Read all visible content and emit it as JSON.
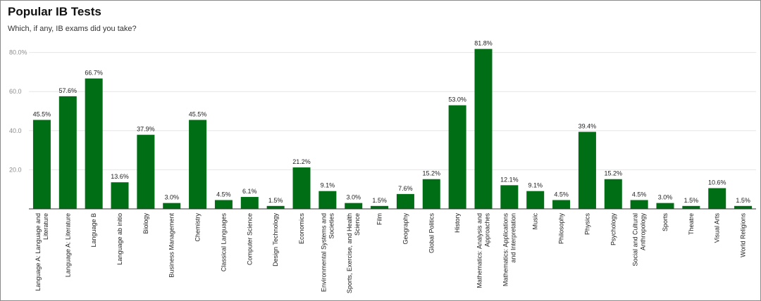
{
  "chart_data": {
    "type": "bar",
    "title": "Popular IB Tests",
    "subtitle": "Which, if any, IB exams did you take?",
    "y_ticks": [
      "80.0%",
      "60.0",
      "40.0",
      "20.0"
    ],
    "y_tick_values": [
      80,
      60,
      40,
      20
    ],
    "ylim": [
      0,
      80
    ],
    "grid": true,
    "categories": [
      [
        "Language A: Language and",
        "Literature"
      ],
      [
        "Language A: Literature"
      ],
      [
        "Language B"
      ],
      [
        "Language ab initio"
      ],
      [
        "Biology"
      ],
      [
        "Business Management"
      ],
      [
        "Chemistry"
      ],
      [
        "Classical Languages"
      ],
      [
        "Computer Science"
      ],
      [
        "Design Technology"
      ],
      [
        "Economics"
      ],
      [
        "Environmental Systems and",
        "Societies"
      ],
      [
        "Sports, Exercise, and Health",
        "Science"
      ],
      [
        "Film"
      ],
      [
        "Geography"
      ],
      [
        "Global Politics"
      ],
      [
        "History"
      ],
      [
        "Mathematics: Analysis and",
        "Approaches"
      ],
      [
        "Mathematics: Applications",
        "and Interpretation"
      ],
      [
        "Music"
      ],
      [
        "Philosophy"
      ],
      [
        "Physics"
      ],
      [
        "Psychology"
      ],
      [
        "Social and Cultural",
        "Anthropology"
      ],
      [
        "Sports"
      ],
      [
        "Theatre"
      ],
      [
        "Visual Arts"
      ],
      [
        "World Religions"
      ]
    ],
    "values": [
      45.5,
      57.6,
      66.7,
      13.6,
      37.9,
      3.0,
      45.5,
      4.5,
      6.1,
      1.5,
      21.2,
      9.1,
      3.0,
      1.5,
      7.6,
      15.2,
      53.0,
      81.8,
      12.1,
      9.1,
      4.5,
      39.4,
      15.2,
      4.5,
      3.0,
      1.5,
      10.6,
      1.5
    ],
    "value_labels": [
      "45.5%",
      "57.6%",
      "66.7%",
      "13.6%",
      "37.9%",
      "3.0%",
      "45.5%",
      "4.5%",
      "6.1%",
      "1.5%",
      "21.2%",
      "9.1%",
      "3.0%",
      "1.5%",
      "7.6%",
      "15.2%",
      "53.0%",
      "81.8%",
      "12.1%",
      "9.1%",
      "4.5%",
      "39.4%",
      "15.2%",
      "4.5%",
      "3.0%",
      "1.5%",
      "10.6%",
      "1.5%"
    ],
    "bar_color": "#006e14"
  }
}
